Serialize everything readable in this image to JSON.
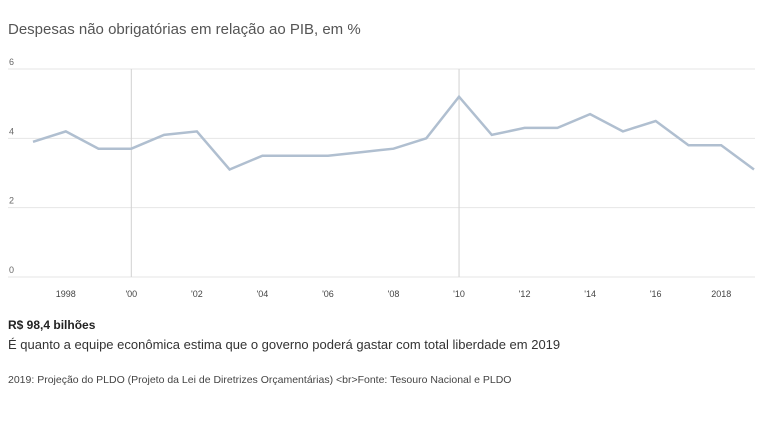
{
  "title": "Despesas não obrigatórias em relação ao PIB, em %",
  "highlight": "R$ 98,4 bilhões",
  "description": "É quanto a equipe econômica estima que o governo poderá gastar com total liberdade em 2019",
  "note": "2019: Projeção do PLDO (Projeto da Lei de Diretrizes Orçamentárias) <br>Fonte: Tesouro Nacional e PLDO",
  "colors": {
    "line": "#b0bfd0",
    "grid": "#e6e6e6",
    "highlight_grid": "#d2d2d2"
  },
  "chart_data": {
    "type": "line",
    "title": "Despesas não obrigatórias em relação ao PIB, em %",
    "x": [
      1997,
      1998,
      1999,
      2000,
      2001,
      2002,
      2003,
      2004,
      2005,
      2006,
      2007,
      2008,
      2009,
      2010,
      2011,
      2012,
      2013,
      2014,
      2015,
      2016,
      2017,
      2018,
      2019
    ],
    "series": [
      {
        "values": [
          3.9,
          4.2,
          3.7,
          3.7,
          4.1,
          4.2,
          3.1,
          3.5,
          3.5,
          3.5,
          3.6,
          3.7,
          4.0,
          5.2,
          4.1,
          4.3,
          4.3,
          4.7,
          4.2,
          4.5,
          3.8,
          3.8,
          3.1
        ]
      }
    ],
    "xlim": [
      1997,
      2019
    ],
    "ylim": [
      0,
      6
    ],
    "yticks": [
      "0",
      "2",
      "4",
      "6"
    ],
    "yticks_values": [
      0,
      2,
      4,
      6
    ],
    "xticks": [
      {
        "value": 1998,
        "label": "1998"
      },
      {
        "value": 2000,
        "label": "'00"
      },
      {
        "value": 2002,
        "label": "'02"
      },
      {
        "value": 2004,
        "label": "'04"
      },
      {
        "value": 2006,
        "label": "'06"
      },
      {
        "value": 2008,
        "label": "'08"
      },
      {
        "value": 2010,
        "label": "'10"
      },
      {
        "value": 2012,
        "label": "'12"
      },
      {
        "value": 2014,
        "label": "'14"
      },
      {
        "value": 2016,
        "label": "'16"
      },
      {
        "value": 2018,
        "label": "2018"
      }
    ],
    "vertical_gridlines_at": [
      2000,
      2010
    ],
    "grid": true
  }
}
